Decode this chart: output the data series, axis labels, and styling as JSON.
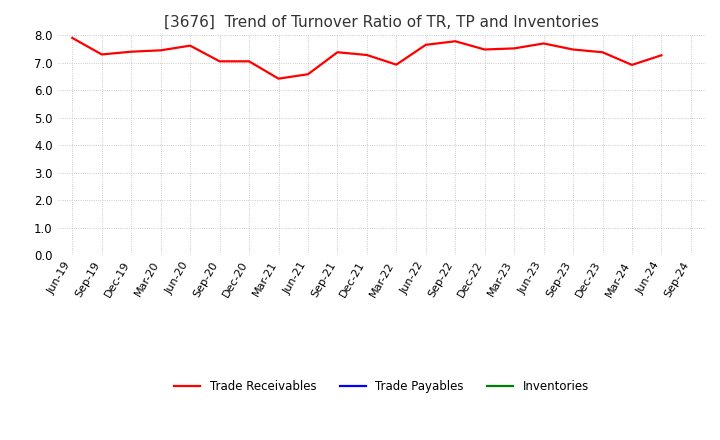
{
  "title": "[3676]  Trend of Turnover Ratio of TR, TP and Inventories",
  "title_fontsize": 11,
  "ylim": [
    0.0,
    8.0
  ],
  "yticks": [
    0.0,
    1.0,
    2.0,
    3.0,
    4.0,
    5.0,
    6.0,
    7.0,
    8.0
  ],
  "x_labels": [
    "Jun-19",
    "Sep-19",
    "Dec-19",
    "Mar-20",
    "Jun-20",
    "Sep-20",
    "Dec-20",
    "Mar-21",
    "Jun-21",
    "Sep-21",
    "Dec-21",
    "Mar-22",
    "Jun-22",
    "Sep-22",
    "Dec-22",
    "Mar-23",
    "Jun-23",
    "Sep-23",
    "Dec-23",
    "Mar-24",
    "Jun-24",
    "Sep-24"
  ],
  "trade_receivables": [
    7.9,
    7.3,
    7.4,
    7.45,
    7.62,
    7.05,
    7.05,
    6.42,
    6.58,
    7.38,
    7.28,
    6.93,
    7.65,
    7.78,
    7.48,
    7.52,
    7.7,
    7.48,
    7.38,
    6.92,
    7.27,
    null
  ],
  "trade_payables": [
    null,
    null,
    null,
    null,
    null,
    null,
    null,
    null,
    null,
    null,
    null,
    null,
    null,
    null,
    null,
    null,
    null,
    null,
    null,
    null,
    null,
    null
  ],
  "inventories": [
    null,
    null,
    null,
    null,
    null,
    null,
    null,
    null,
    null,
    null,
    null,
    null,
    null,
    null,
    null,
    null,
    null,
    null,
    null,
    null,
    null,
    null
  ],
  "tr_color": "#ff0000",
  "tp_color": "#0000ff",
  "inv_color": "#008000",
  "legend_labels": [
    "Trade Receivables",
    "Trade Payables",
    "Inventories"
  ],
  "background_color": "#ffffff",
  "grid_color": "#bbbbbb",
  "line_width": 1.6,
  "tick_label_fontsize": 8.0,
  "ytick_label_fontsize": 8.5
}
